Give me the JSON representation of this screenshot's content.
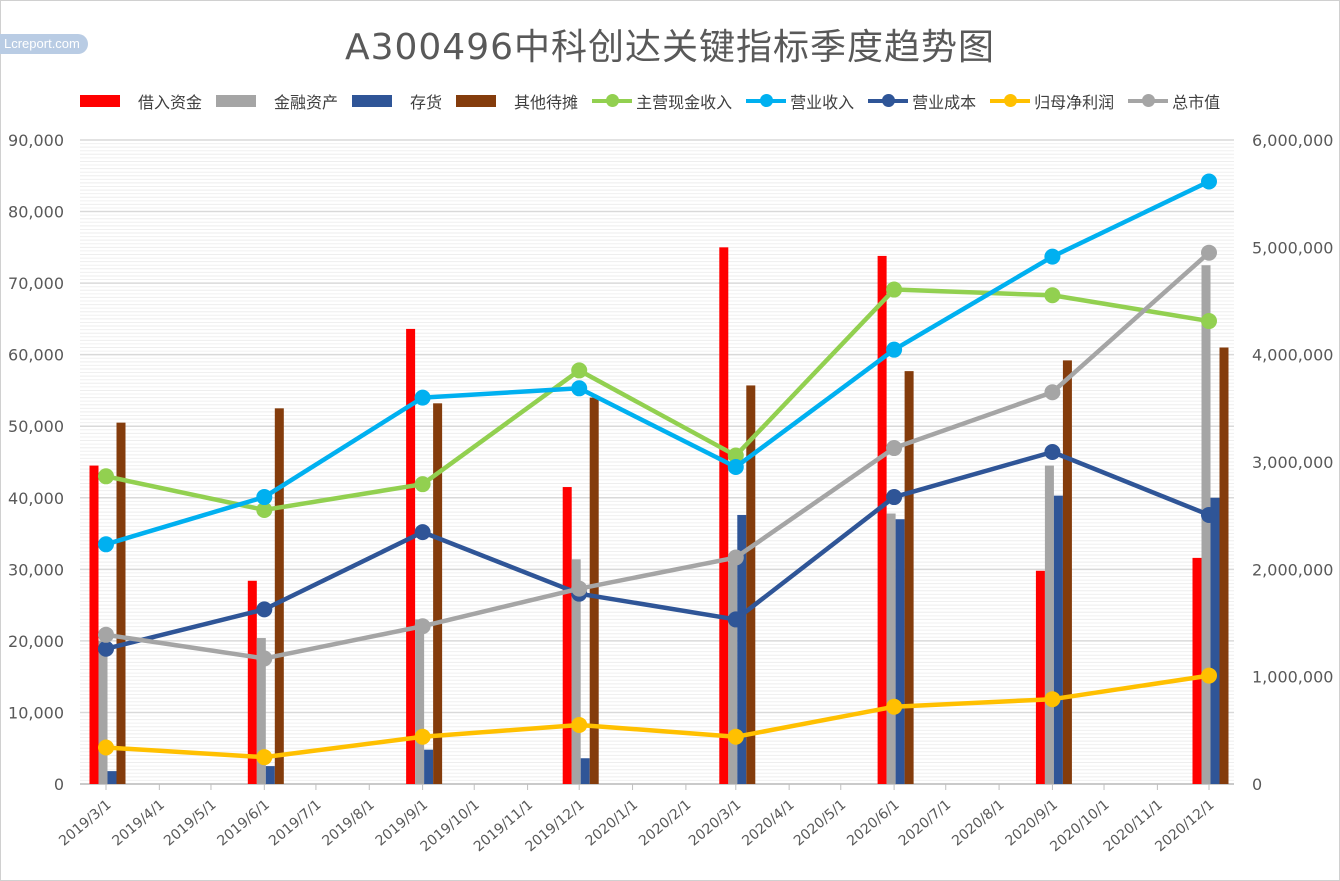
{
  "chart_data": {
    "type": "bar+line",
    "title": "A300496中科创达关键指标季度趋势图",
    "watermark": "Lcreport.com",
    "x_ticks": [
      "2019/3/1",
      "2019/4/1",
      "2019/5/1",
      "2019/6/1",
      "2019/7/1",
      "2019/8/1",
      "2019/9/1",
      "2019/10/1",
      "2019/11/1",
      "2019/12/1",
      "2020/1/1",
      "2020/2/1",
      "2020/3/1",
      "2020/4/1",
      "2020/5/1",
      "2020/6/1",
      "2020/7/1",
      "2020/8/1",
      "2020/9/1",
      "2020/10/1",
      "2020/11/1",
      "2020/12/1"
    ],
    "dates": [
      "2019/3/1",
      "2019/6/1",
      "2019/9/1",
      "2019/12/1",
      "2020/3/1",
      "2020/6/1",
      "2020/9/1",
      "2020/12/1"
    ],
    "y_left": {
      "min": 0,
      "max": 90000,
      "ticks": [
        "0",
        "10,000",
        "20,000",
        "30,000",
        "40,000",
        "50,000",
        "60,000",
        "70,000",
        "80,000",
        "90,000"
      ]
    },
    "y_right": {
      "min": 0,
      "max": 6000000,
      "ticks": [
        "0",
        "1,000,000",
        "2,000,000",
        "3,000,000",
        "4,000,000",
        "5,000,000",
        "6,000,000"
      ]
    },
    "grid": true,
    "legend_position": "top",
    "bar_series": [
      {
        "name": "借入资金",
        "color": "#ff0000",
        "values": [
          44500,
          28400,
          63600,
          41500,
          75000,
          73800,
          29800,
          31600
        ]
      },
      {
        "name": "金融资产",
        "color": "#a5a5a5",
        "values": [
          20000,
          20400,
          23000,
          31400,
          31000,
          37800,
          44500,
          72500
        ]
      },
      {
        "name": "存货",
        "color": "#2f5597",
        "values": [
          1800,
          2500,
          4800,
          3600,
          37600,
          37000,
          40300,
          40000
        ]
      },
      {
        "name": "其他待摊",
        "color": "#843c0c",
        "values": [
          50500,
          52500,
          53200,
          54000,
          55700,
          57700,
          59200,
          61000
        ]
      }
    ],
    "line_series": [
      {
        "name": "主营现金收入",
        "color": "#92d050",
        "axis": "left",
        "values": [
          43000,
          38300,
          41900,
          57800,
          45900,
          69100,
          68300,
          64700
        ]
      },
      {
        "name": "营业收入",
        "color": "#00b0f0",
        "axis": "left",
        "values": [
          33500,
          40100,
          54000,
          55300,
          44300,
          60700,
          73700,
          84200
        ]
      },
      {
        "name": "营业成本",
        "color": "#2f5597",
        "axis": "left",
        "values": [
          18900,
          24400,
          35200,
          26600,
          23000,
          40100,
          46400,
          37600
        ]
      },
      {
        "name": "归母净利润",
        "color": "#ffc000",
        "axis": "right",
        "values": [
          340000,
          250000,
          440000,
          550000,
          440000,
          720000,
          790000,
          1010000
        ]
      },
      {
        "name": "总市值",
        "color": "#a5a5a5",
        "axis": "right",
        "values": [
          1390000,
          1170000,
          1470000,
          1820000,
          2110000,
          3130000,
          3650000,
          4950000
        ]
      }
    ]
  }
}
